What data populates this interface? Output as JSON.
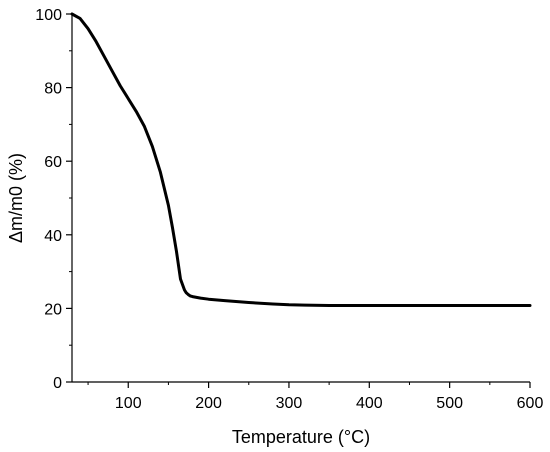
{
  "chart_data": {
    "type": "line",
    "xlabel": "Temperature (°C)",
    "ylabel": "Δm/m0 (%)",
    "xlim": [
      30,
      600
    ],
    "ylim": [
      0,
      100
    ],
    "xticks": [
      100,
      200,
      300,
      400,
      500,
      600
    ],
    "yticks": [
      0,
      20,
      40,
      60,
      80,
      100
    ],
    "grid": false,
    "series": [
      {
        "color": "#000000",
        "x": [
          30,
          40,
          50,
          60,
          70,
          80,
          90,
          100,
          110,
          120,
          130,
          140,
          150,
          155,
          160,
          165,
          170,
          172,
          174,
          175,
          177,
          180,
          185,
          190,
          200,
          220,
          250,
          280,
          300,
          320,
          350,
          400,
          450,
          500,
          550,
          600
        ],
        "y": [
          100,
          98.8,
          96,
          92.5,
          88.5,
          84.5,
          80.5,
          77,
          73.5,
          69.5,
          64,
          57,
          48,
          42,
          35.5,
          28,
          25,
          24.3,
          23.9,
          23.7,
          23.4,
          23.2,
          23.0,
          22.8,
          22.5,
          22.1,
          21.6,
          21.2,
          21.0,
          20.9,
          20.8,
          20.8,
          20.8,
          20.8,
          20.8,
          20.8
        ]
      }
    ]
  }
}
